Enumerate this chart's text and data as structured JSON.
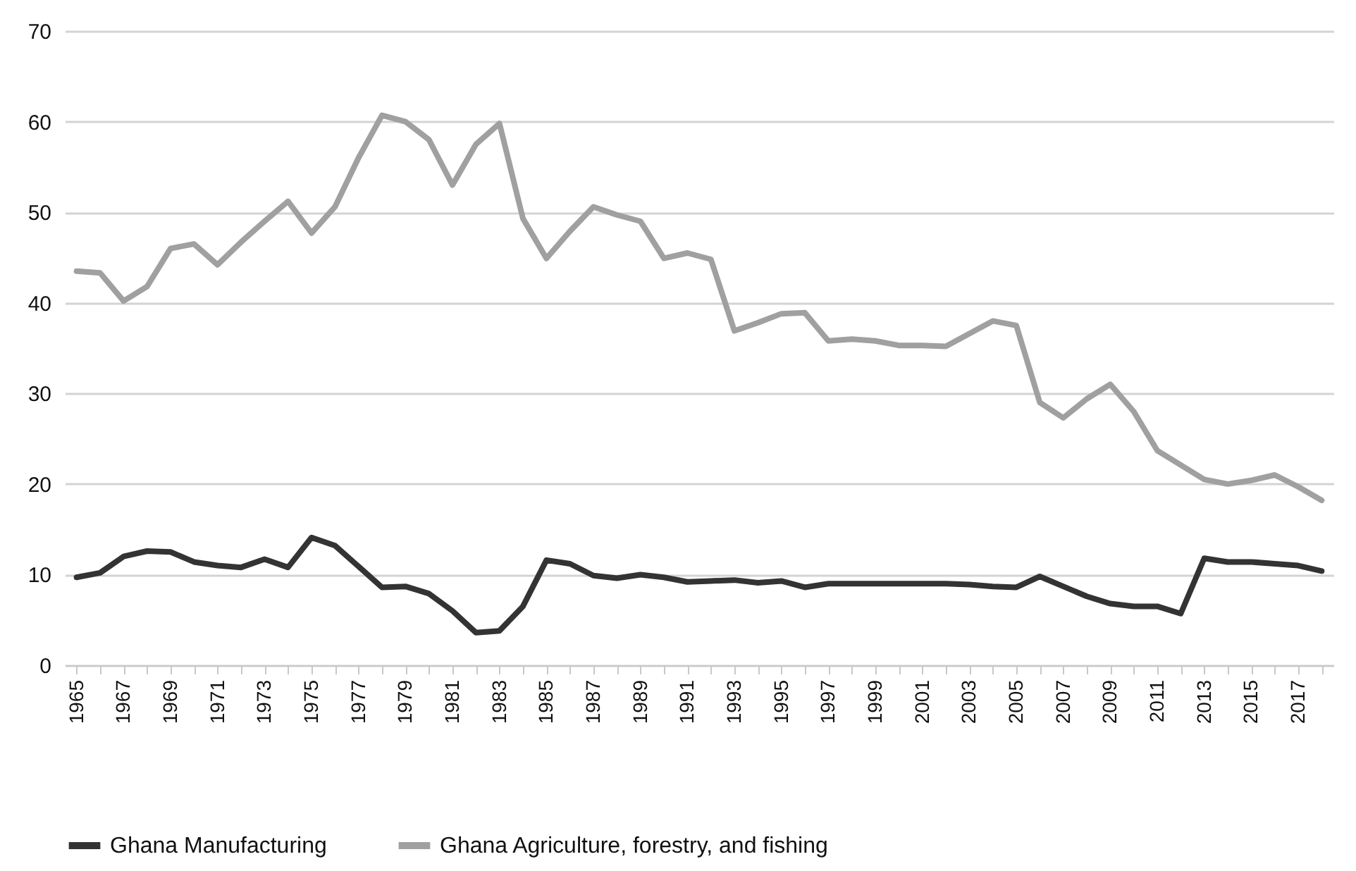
{
  "chart_data": {
    "type": "line",
    "categories": [
      "1965",
      null,
      "1967",
      null,
      "1969",
      null,
      "1971",
      null,
      "1973",
      null,
      "1975",
      null,
      "1977",
      null,
      "1979",
      null,
      "1981",
      null,
      "1983",
      null,
      "1985",
      null,
      "1987",
      null,
      "1989",
      null,
      "1991",
      null,
      "1993",
      null,
      "1995",
      null,
      "1997",
      null,
      "1999",
      null,
      "2001",
      null,
      "2003",
      null,
      "2005",
      null,
      "2007",
      null,
      "2009",
      null,
      "2011",
      null,
      "2013",
      null,
      "2015",
      null,
      "2017",
      null
    ],
    "series": [
      {
        "name": "Ghana Manufacturing",
        "color": "#333333",
        "values": [
          9.7,
          10.2,
          12.0,
          12.6,
          12.5,
          11.4,
          11.0,
          10.8,
          11.7,
          10.8,
          14.1,
          13.2,
          10.9,
          8.6,
          8.7,
          7.9,
          6.0,
          3.6,
          3.8,
          6.5,
          11.6,
          11.2,
          9.9,
          9.6,
          10.0,
          9.7,
          9.2,
          9.3,
          9.4,
          9.1,
          9.3,
          8.6,
          9.0,
          9.0,
          9.0,
          9.0,
          9.0,
          9.0,
          8.9,
          8.7,
          8.6,
          9.8,
          8.7,
          7.6,
          6.8,
          6.5,
          6.5,
          5.7,
          11.8,
          11.4,
          11.4,
          11.2,
          11.0,
          10.4
        ]
      },
      {
        "name": "Ghana Agriculture, forestry, and fishing",
        "color": "#a0a0a0",
        "values": [
          43.5,
          43.3,
          40.2,
          41.8,
          46.0,
          46.5,
          44.2,
          46.7,
          49.0,
          51.2,
          47.7,
          50.6,
          56.0,
          60.7,
          60.0,
          58.0,
          53.0,
          57.5,
          59.8,
          49.3,
          44.9,
          47.9,
          50.6,
          49.7,
          49.0,
          44.9,
          45.5,
          44.8,
          36.9,
          37.8,
          38.8,
          38.9,
          35.8,
          36.0,
          35.8,
          35.3,
          35.3,
          35.2,
          36.6,
          38.0,
          37.5,
          29.0,
          27.3,
          29.4,
          31.0,
          28.0,
          23.7,
          22.1,
          20.5,
          20.0,
          20.4,
          21.0,
          19.7,
          18.2
        ]
      }
    ],
    "ylim": [
      0,
      70
    ],
    "yticks": [
      0,
      10,
      20,
      30,
      40,
      50,
      60,
      70
    ],
    "grid": "y",
    "legend": "bottom",
    "line_style": "solid",
    "marker": "none"
  }
}
